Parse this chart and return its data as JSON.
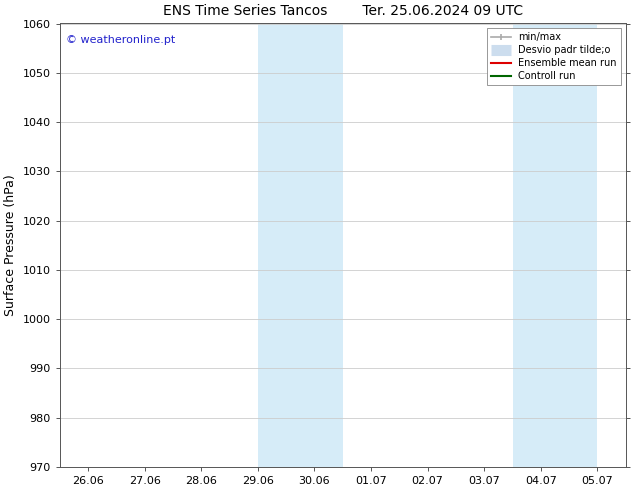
{
  "title_left": "ENS Time Series Tancos",
  "title_right": "Ter. 25.06.2024 09 UTC",
  "ylabel": "Surface Pressure (hPa)",
  "ylim": [
    970,
    1060
  ],
  "yticks": [
    970,
    980,
    990,
    1000,
    1010,
    1020,
    1030,
    1040,
    1050,
    1060
  ],
  "xtick_labels": [
    "26.06",
    "27.06",
    "28.06",
    "29.06",
    "30.06",
    "01.07",
    "02.07",
    "03.07",
    "04.07",
    "05.07"
  ],
  "xtick_positions": [
    0,
    1,
    2,
    3,
    4,
    5,
    6,
    7,
    8,
    9
  ],
  "xlim": [
    -0.5,
    9.5
  ],
  "shaded_regions": [
    {
      "xstart": 3.0,
      "xend": 4.5
    },
    {
      "xstart": 7.5,
      "xend": 9.0
    }
  ],
  "shaded_color": "#d6ecf8",
  "watermark": "© weatheronline.pt",
  "watermark_color": "#2222cc",
  "legend_items": [
    {
      "label": "min/max",
      "color": "#aaaaaa",
      "lw": 1.2,
      "style": "with_caps"
    },
    {
      "label": "Desvio padr tilde;o",
      "color": "#ccddee",
      "lw": 8,
      "style": "thick"
    },
    {
      "label": "Ensemble mean run",
      "color": "#dd0000",
      "lw": 1.5,
      "style": "solid"
    },
    {
      "label": "Controll run",
      "color": "#006600",
      "lw": 1.5,
      "style": "solid"
    }
  ],
  "background_color": "#ffffff",
  "grid_color": "#cccccc",
  "title_fontsize": 10,
  "ylabel_fontsize": 9,
  "tick_fontsize": 8,
  "legend_fontsize": 7,
  "watermark_fontsize": 8
}
